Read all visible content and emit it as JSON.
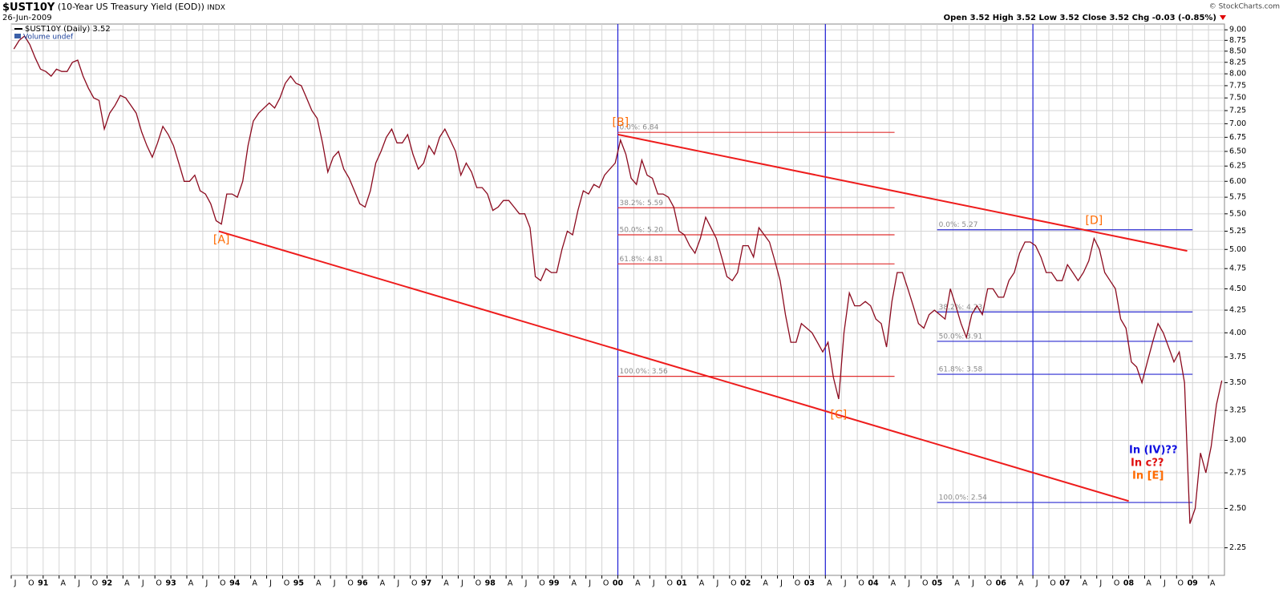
{
  "chart_data": {
    "type": "line",
    "title": "$UST10Y",
    "subtitle": "(10-Year US Treasury Yield (EOD))",
    "exchange": "INDX",
    "date": "26-Jun-2009",
    "source": "© StockCharts.com",
    "quote": "Open 3.52 High 3.52 Low 3.52 Close 3.52 Chg -0.03 (-0.85%)",
    "volume_label": "Volume undef",
    "log_scale": true,
    "grid": true,
    "ylim": [
      2.09,
      9.14
    ],
    "xlim": [
      "1990-07",
      "2009-07"
    ],
    "yticks": [
      {
        "value": 2.25,
        "label": "2.25"
      },
      {
        "value": 2.5,
        "label": "2.50"
      },
      2.75,
      {
        "value": 3,
        "label": "3.00"
      },
      3.25,
      {
        "value": 3.5,
        "label": "3.50"
      },
      3.75,
      {
        "value": 4,
        "label": "4.00"
      },
      4.25,
      {
        "value": 4.5,
        "label": "4.50"
      },
      4.75,
      {
        "value": 5,
        "label": "5.00"
      },
      5.25,
      {
        "value": 5.5,
        "label": "5.50"
      },
      5.75,
      {
        "value": 6,
        "label": "6.00"
      },
      6.25,
      {
        "value": 6.5,
        "label": "6.50"
      },
      6.75,
      {
        "value": 7,
        "label": "7.00"
      },
      7.25,
      {
        "value": 7.5,
        "label": "7.50"
      },
      7.75,
      {
        "value": 8,
        "label": "8.00"
      },
      8.25,
      {
        "value": 8.5,
        "label": "8.50"
      },
      8.75,
      {
        "value": 9,
        "label": "9.00"
      }
    ],
    "xticks": [
      {
        "value": "1990-07",
        "label": "J"
      },
      {
        "value": "1990-10",
        "label": "O"
      },
      {
        "value": "1991-01",
        "label": "91"
      },
      {
        "value": "1991-04",
        "label": "A"
      },
      {
        "value": "1991-07",
        "label": "J"
      },
      {
        "value": "1991-10",
        "label": "O"
      },
      {
        "value": "1992-01",
        "label": "92"
      },
      {
        "value": "1992-04",
        "label": "A"
      },
      {
        "value": "1992-07",
        "label": "J"
      },
      {
        "value": "1992-10",
        "label": "O"
      },
      {
        "value": "1993-01",
        "label": "93"
      },
      {
        "value": "1993-04",
        "label": "A"
      },
      {
        "value": "1993-07",
        "label": "J"
      },
      {
        "value": "1993-10",
        "label": "O"
      },
      {
        "value": "1994-01",
        "label": "94"
      },
      {
        "value": "1994-04",
        "label": "A"
      },
      {
        "value": "1994-07",
        "label": "J"
      },
      {
        "value": "1994-10",
        "label": "O"
      },
      {
        "value": "1995-01",
        "label": "95"
      },
      {
        "value": "1995-04",
        "label": "A"
      },
      {
        "value": "1995-07",
        "label": "J"
      },
      {
        "value": "1995-10",
        "label": "O"
      },
      {
        "value": "1996-01",
        "label": "96"
      },
      {
        "value": "1996-04",
        "label": "A"
      },
      {
        "value": "1996-07",
        "label": "J"
      },
      {
        "value": "1996-10",
        "label": "O"
      },
      {
        "value": "1997-01",
        "label": "97"
      },
      {
        "value": "1997-04",
        "label": "A"
      },
      {
        "value": "1997-07",
        "label": "J"
      },
      {
        "value": "1997-10",
        "label": "O"
      },
      {
        "value": "1998-01",
        "label": "98"
      },
      {
        "value": "1998-04",
        "label": "A"
      },
      {
        "value": "1998-07",
        "label": "J"
      },
      {
        "value": "1998-10",
        "label": "O"
      },
      {
        "value": "1999-01",
        "label": "99"
      },
      {
        "value": "1999-04",
        "label": "A"
      },
      {
        "value": "1999-07",
        "label": "J"
      },
      {
        "value": "1999-10",
        "label": "O"
      },
      {
        "value": "2000-01",
        "label": "00"
      },
      {
        "value": "2000-04",
        "label": "A"
      },
      {
        "value": "2000-07",
        "label": "J"
      },
      {
        "value": "2000-10",
        "label": "O"
      },
      {
        "value": "2001-01",
        "label": "01"
      },
      {
        "value": "2001-04",
        "label": "A"
      },
      {
        "value": "2001-07",
        "label": "J"
      },
      {
        "value": "2001-10",
        "label": "O"
      },
      {
        "value": "2002-01",
        "label": "02"
      },
      {
        "value": "2002-04",
        "label": "A"
      },
      {
        "value": "2002-07",
        "label": "J"
      },
      {
        "value": "2002-10",
        "label": "O"
      },
      {
        "value": "2003-01",
        "label": "03"
      },
      {
        "value": "2003-04",
        "label": "A"
      },
      {
        "value": "2003-07",
        "label": "J"
      },
      {
        "value": "2003-10",
        "label": "O"
      },
      {
        "value": "2004-01",
        "label": "04"
      },
      {
        "value": "2004-04",
        "label": "A"
      },
      {
        "value": "2004-07",
        "label": "J"
      },
      {
        "value": "2004-10",
        "label": "O"
      },
      {
        "value": "2005-01",
        "label": "05"
      },
      {
        "value": "2005-04",
        "label": "A"
      },
      {
        "value": "2005-07",
        "label": "J"
      },
      {
        "value": "2005-10",
        "label": "O"
      },
      {
        "value": "2006-01",
        "label": "06"
      },
      {
        "value": "2006-04",
        "label": "A"
      },
      {
        "value": "2006-07",
        "label": "J"
      },
      {
        "value": "2006-10",
        "label": "O"
      },
      {
        "value": "2007-01",
        "label": "07"
      },
      {
        "value": "2007-04",
        "label": "A"
      },
      {
        "value": "2007-07",
        "label": "J"
      },
      {
        "value": "2007-10",
        "label": "O"
      },
      {
        "value": "2008-01",
        "label": "08"
      },
      {
        "value": "2008-04",
        "label": "A"
      },
      {
        "value": "2008-07",
        "label": "J"
      },
      {
        "value": "2008-10",
        "label": "O"
      },
      {
        "value": "2009-01",
        "label": "09"
      },
      {
        "value": "2009-04",
        "label": "A"
      }
    ],
    "x": [
      "1990-07",
      "1990-08",
      "1990-09",
      "1990-10",
      "1990-11",
      "1990-12",
      "1991-01",
      "1991-02",
      "1991-03",
      "1991-04",
      "1991-05",
      "1991-06",
      "1991-07",
      "1991-08",
      "1991-09",
      "1991-10",
      "1991-11",
      "1991-12",
      "1992-01",
      "1992-02",
      "1992-03",
      "1992-04",
      "1992-05",
      "1992-06",
      "1992-07",
      "1992-08",
      "1992-09",
      "1992-10",
      "1992-11",
      "1992-12",
      "1993-01",
      "1993-02",
      "1993-03",
      "1993-04",
      "1993-05",
      "1993-06",
      "1993-07",
      "1993-08",
      "1993-09",
      "1993-10",
      "1993-11",
      "1993-12",
      "1994-01",
      "1994-02",
      "1994-03",
      "1994-04",
      "1994-05",
      "1994-06",
      "1994-07",
      "1994-08",
      "1994-09",
      "1994-10",
      "1994-11",
      "1994-12",
      "1995-01",
      "1995-02",
      "1995-03",
      "1995-04",
      "1995-05",
      "1995-06",
      "1995-07",
      "1995-08",
      "1995-09",
      "1995-10",
      "1995-11",
      "1995-12",
      "1996-01",
      "1996-02",
      "1996-03",
      "1996-04",
      "1996-05",
      "1996-06",
      "1996-07",
      "1996-08",
      "1996-09",
      "1996-10",
      "1996-11",
      "1996-12",
      "1997-01",
      "1997-02",
      "1997-03",
      "1997-04",
      "1997-05",
      "1997-06",
      "1997-07",
      "1997-08",
      "1997-09",
      "1997-10",
      "1997-11",
      "1997-12",
      "1998-01",
      "1998-02",
      "1998-03",
      "1998-04",
      "1998-05",
      "1998-06",
      "1998-07",
      "1998-08",
      "1998-09",
      "1998-10",
      "1998-11",
      "1998-12",
      "1999-01",
      "1999-02",
      "1999-03",
      "1999-04",
      "1999-05",
      "1999-06",
      "1999-07",
      "1999-08",
      "1999-09",
      "1999-10",
      "1999-11",
      "1999-12",
      "2000-01",
      "2000-02",
      "2000-03",
      "2000-04",
      "2000-05",
      "2000-06",
      "2000-07",
      "2000-08",
      "2000-09",
      "2000-10",
      "2000-11",
      "2000-12",
      "2001-01",
      "2001-02",
      "2001-03",
      "2001-04",
      "2001-05",
      "2001-06",
      "2001-07",
      "2001-08",
      "2001-09",
      "2001-10",
      "2001-11",
      "2001-12",
      "2002-01",
      "2002-02",
      "2002-03",
      "2002-04",
      "2002-05",
      "2002-06",
      "2002-07",
      "2002-08",
      "2002-09",
      "2002-10",
      "2002-11",
      "2002-12",
      "2003-01",
      "2003-02",
      "2003-03",
      "2003-04",
      "2003-05",
      "2003-06",
      "2003-07",
      "2003-08",
      "2003-09",
      "2003-10",
      "2003-11",
      "2003-12",
      "2004-01",
      "2004-02",
      "2004-03",
      "2004-04",
      "2004-05",
      "2004-06",
      "2004-07",
      "2004-08",
      "2004-09",
      "2004-10",
      "2004-11",
      "2004-12",
      "2005-01",
      "2005-02",
      "2005-03",
      "2005-04",
      "2005-05",
      "2005-06",
      "2005-07",
      "2005-08",
      "2005-09",
      "2005-10",
      "2005-11",
      "2005-12",
      "2006-01",
      "2006-02",
      "2006-03",
      "2006-04",
      "2006-05",
      "2006-06",
      "2006-07",
      "2006-08",
      "2006-09",
      "2006-10",
      "2006-11",
      "2006-12",
      "2007-01",
      "2007-02",
      "2007-03",
      "2007-04",
      "2007-05",
      "2007-06",
      "2007-07",
      "2007-08",
      "2007-09",
      "2007-10",
      "2007-11",
      "2007-12",
      "2008-01",
      "2008-02",
      "2008-03",
      "2008-04",
      "2008-05",
      "2008-06",
      "2008-07",
      "2008-08",
      "2008-09",
      "2008-10",
      "2008-11",
      "2008-12",
      "2009-01",
      "2009-02",
      "2009-03",
      "2009-04",
      "2009-05",
      "2009-06"
    ],
    "series": [
      {
        "name": "$UST10Y (Daily) 3.52",
        "color": "#8b0a1e",
        "values": [
          8.55,
          8.75,
          8.85,
          8.65,
          8.35,
          8.1,
          8.05,
          7.95,
          8.1,
          8.05,
          8.05,
          8.25,
          8.3,
          7.95,
          7.7,
          7.5,
          7.45,
          6.9,
          7.2,
          7.35,
          7.55,
          7.5,
          7.35,
          7.2,
          6.85,
          6.6,
          6.4,
          6.65,
          6.95,
          6.8,
          6.6,
          6.3,
          6.0,
          6.0,
          6.1,
          5.85,
          5.8,
          5.65,
          5.4,
          5.35,
          5.8,
          5.8,
          5.75,
          6.0,
          6.6,
          7.05,
          7.2,
          7.3,
          7.4,
          7.3,
          7.5,
          7.8,
          7.95,
          7.8,
          7.75,
          7.5,
          7.25,
          7.1,
          6.65,
          6.15,
          6.4,
          6.5,
          6.2,
          6.05,
          5.85,
          5.65,
          5.6,
          5.85,
          6.3,
          6.5,
          6.75,
          6.9,
          6.65,
          6.65,
          6.8,
          6.45,
          6.2,
          6.3,
          6.6,
          6.45,
          6.75,
          6.9,
          6.7,
          6.5,
          6.1,
          6.3,
          6.15,
          5.9,
          5.9,
          5.8,
          5.55,
          5.6,
          5.7,
          5.7,
          5.6,
          5.5,
          5.5,
          5.3,
          4.65,
          4.6,
          4.75,
          4.7,
          4.7,
          5.0,
          5.25,
          5.2,
          5.55,
          5.85,
          5.8,
          5.95,
          5.9,
          6.1,
          6.2,
          6.3,
          6.7,
          6.45,
          6.05,
          5.95,
          6.35,
          6.1,
          6.05,
          5.8,
          5.8,
          5.75,
          5.6,
          5.25,
          5.2,
          5.05,
          4.95,
          5.15,
          5.45,
          5.3,
          5.15,
          4.9,
          4.65,
          4.6,
          4.7,
          5.05,
          5.05,
          4.9,
          5.3,
          5.2,
          5.1,
          4.85,
          4.6,
          4.2,
          3.9,
          3.9,
          4.1,
          4.05,
          4.0,
          3.9,
          3.8,
          3.9,
          3.55,
          3.35,
          4.0,
          4.45,
          4.3,
          4.3,
          4.35,
          4.3,
          4.15,
          4.1,
          3.85,
          4.35,
          4.7,
          4.7,
          4.5,
          4.3,
          4.1,
          4.05,
          4.2,
          4.25,
          4.2,
          4.15,
          4.5,
          4.3,
          4.1,
          3.95,
          4.2,
          4.3,
          4.2,
          4.5,
          4.5,
          4.4,
          4.4,
          4.6,
          4.7,
          4.95,
          5.1,
          5.1,
          5.05,
          4.9,
          4.7,
          4.7,
          4.6,
          4.6,
          4.8,
          4.7,
          4.6,
          4.7,
          4.85,
          5.15,
          5.0,
          4.7,
          4.6,
          4.5,
          4.15,
          4.05,
          3.7,
          3.65,
          3.5,
          3.7,
          3.9,
          4.1,
          4.0,
          3.85,
          3.7,
          3.8,
          3.5,
          2.4,
          2.5,
          2.9,
          2.75,
          2.95,
          3.3,
          3.52
        ]
      }
    ],
    "vlines": {
      "color": "#1f1fd6",
      "x": [
        "2000-01",
        "2003-04",
        "2006-07"
      ]
    },
    "trendlines": [
      {
        "color": "#ee1c1c",
        "x": [
          "2000-01",
          "2008-12"
        ],
        "values": [
          6.8,
          4.98
        ]
      },
      {
        "color": "#ee1c1c",
        "x": [
          "1993-10",
          "2008-01"
        ],
        "values": [
          5.25,
          2.55
        ]
      }
    ],
    "fib_sets": [
      {
        "color": "#e03030",
        "x": [
          "2000-01",
          "2004-05"
        ],
        "levels": [
          {
            "label": "0.0%: 6.84",
            "value": 6.84
          },
          {
            "label": "38.2%: 5.59",
            "value": 5.59
          },
          {
            "label": "50.0%: 5.20",
            "value": 5.2
          },
          {
            "label": "61.8%: 4.81",
            "value": 4.81
          },
          {
            "label": "100.0%: 3.56",
            "value": 3.56
          }
        ]
      },
      {
        "color": "#2a2ad0",
        "x": [
          "2005-01",
          "2009-01"
        ],
        "levels": [
          {
            "label": "0.0%: 5.27",
            "value": 5.27
          },
          {
            "label": "38.2%: 4.23",
            "value": 4.23
          },
          {
            "label": "50.0%: 3.91",
            "value": 3.91
          },
          {
            "label": "61.8%: 3.58",
            "value": 3.58
          },
          {
            "label": "100.0%: 2.54",
            "value": 2.54
          }
        ]
      }
    ],
    "annotations": [
      {
        "text": "[A]",
        "x": "1993-10",
        "position": "below",
        "color": "#ff6a00"
      },
      {
        "text": "[B]",
        "x": "2000-01",
        "position": "above",
        "color": "#ff6a00"
      },
      {
        "text": "[C]",
        "x": "2003-06",
        "position": "below",
        "color": "#ff6a00"
      },
      {
        "text": "[D]",
        "x": "2007-06",
        "position": "above",
        "color": "#ff6a00"
      }
    ],
    "notes": [
      {
        "text": "In (IV)??",
        "color": "#1010e0"
      },
      {
        "text": "In c??",
        "color": "#e01010"
      },
      {
        "text": "In [E]",
        "color": "#ff6a00"
      }
    ]
  }
}
